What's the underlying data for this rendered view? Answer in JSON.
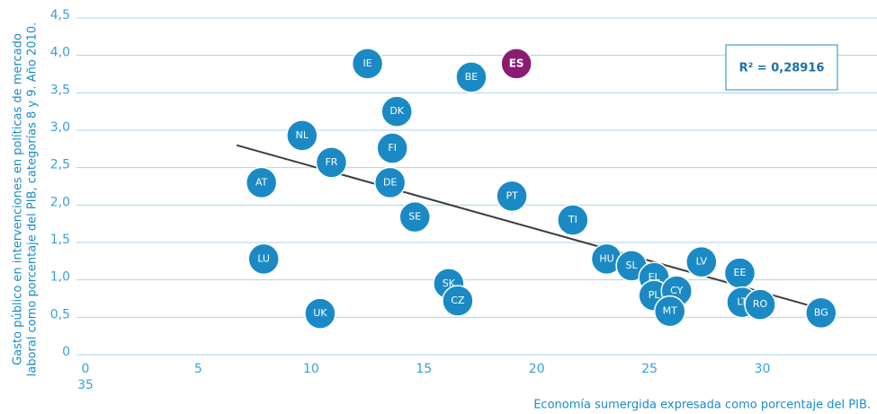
{
  "chart_data": {
    "type": "scatter",
    "x_label": "Economía sumergida expresada como porcentaje del PIB.",
    "y_label": [
      "Gasto público en intervenciones en políticas de mercado",
      "laboral como porcentaje del PIB, categorías 8 y 9. Año 2010."
    ],
    "labels": [
      "IE",
      "ES",
      "BE",
      "DK",
      "NL",
      "FI",
      "FR",
      "AT",
      "DE",
      "PT",
      "SE",
      "TI",
      "LU",
      "HU",
      "SL",
      "LV",
      "EE",
      "EL",
      "SK",
      "PL",
      "CY",
      "CZ",
      "LT",
      "RO",
      "UK",
      "MT",
      "BG"
    ],
    "x": [
      12.5,
      19.1,
      17.1,
      13.8,
      9.6,
      13.6,
      10.9,
      7.8,
      13.5,
      18.9,
      14.6,
      21.6,
      7.9,
      23.1,
      24.2,
      27.3,
      29.0,
      25.2,
      16.1,
      25.2,
      26.2,
      16.5,
      29.1,
      29.9,
      10.4,
      25.9,
      32.6
    ],
    "y": [
      3.89,
      3.89,
      3.71,
      3.25,
      2.93,
      2.76,
      2.57,
      2.3,
      2.3,
      2.12,
      1.84,
      1.8,
      1.28,
      1.28,
      1.19,
      1.24,
      1.09,
      1.03,
      0.95,
      0.79,
      0.85,
      0.72,
      0.7,
      0.67,
      0.55,
      0.58,
      0.56
    ],
    "color": "#1b8ac4",
    "highlight": "ES",
    "highlight_color": "#8c1c72",
    "trendline": {
      "x": [
        6.7,
        32.3
      ],
      "y": [
        2.8,
        0.64
      ],
      "color": "#3c3c3c"
    },
    "annotation": "R² = 0,28916",
    "xlim": [
      0,
      35
    ],
    "xticks": [
      0,
      5,
      10,
      15,
      20,
      25,
      30,
      35
    ],
    "ylim": [
      0,
      4.5
    ],
    "yticks": [
      0,
      {
        "value": 0.5,
        "label": "0,5"
      },
      {
        "value": 1,
        "label": "1,0"
      },
      {
        "value": 1.5,
        "label": "1,5"
      },
      {
        "value": 2,
        "label": "2,0"
      },
      {
        "value": 2.5,
        "label": "2,5"
      },
      {
        "value": 3,
        "label": "3,0"
      },
      {
        "value": 3.5,
        "label": "3,5"
      },
      {
        "value": 4,
        "label": "4,0"
      },
      {
        "value": 4.5,
        "label": "4,5"
      }
    ],
    "grid": true
  }
}
